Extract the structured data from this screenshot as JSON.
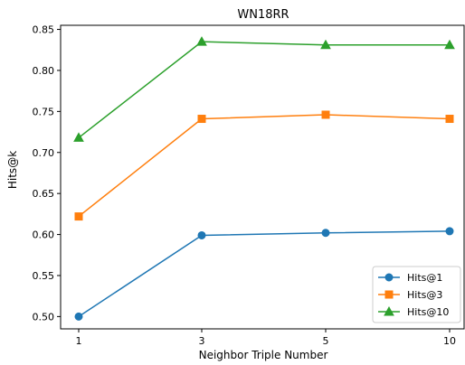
{
  "chart_data": {
    "type": "line",
    "title": "WN18RR",
    "xlabel": "Neighbor Triple Number",
    "ylabel": "Hits@k",
    "categories": [
      "1",
      "3",
      "5",
      "10"
    ],
    "ylim": [
      0.485,
      0.855
    ],
    "yticks": [
      "0.50",
      "0.55",
      "0.60",
      "0.65",
      "0.70",
      "0.75",
      "0.80",
      "0.85"
    ],
    "grid": false,
    "legend_position": "bottom-right",
    "series": [
      {
        "name": "Hits@1",
        "values": [
          0.5,
          0.599,
          0.602,
          0.604
        ],
        "color": "#1f77b4",
        "marker": "circle"
      },
      {
        "name": "Hits@3",
        "values": [
          0.622,
          0.741,
          0.746,
          0.741
        ],
        "color": "#ff7f0e",
        "marker": "square"
      },
      {
        "name": "Hits@10",
        "values": [
          0.718,
          0.835,
          0.831,
          0.831
        ],
        "color": "#2ca02c",
        "marker": "triangle"
      }
    ]
  }
}
